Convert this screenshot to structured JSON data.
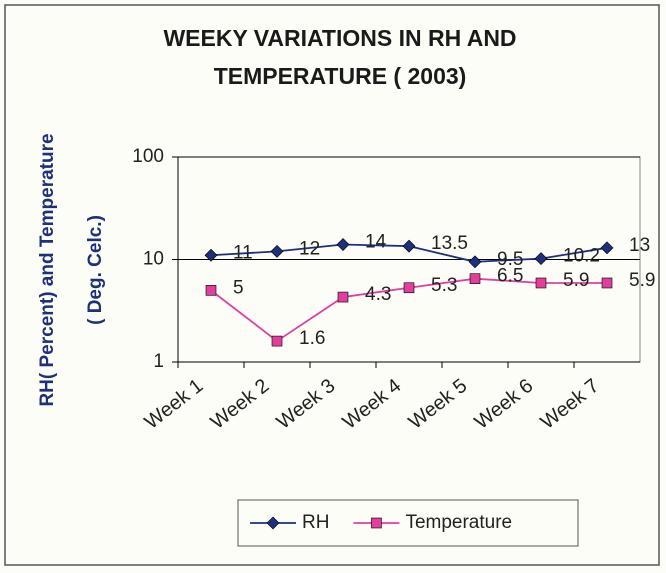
{
  "chart_data": {
    "type": "line",
    "title": [
      "WEEKY VARIATIONS IN RH AND",
      "TEMPERATURE ( 2003)"
    ],
    "ylabel": [
      "RH( Percent) and Temperature",
      "( Deg. Celc.)"
    ],
    "categories": [
      "Week 1",
      "Week 2",
      "Week 3",
      "Week 4",
      "Week 5",
      "Week 6",
      "Week 7"
    ],
    "series": [
      {
        "name": "RH",
        "color": "#1f2f7a",
        "marker": "diamond",
        "values": [
          11,
          12,
          14,
          13.5,
          9.5,
          10.2,
          13
        ]
      },
      {
        "name": "Temperature",
        "color": "#e0409c",
        "marker": "square",
        "values": [
          5,
          1.6,
          4.3,
          5.3,
          6.5,
          5.9,
          5.9
        ]
      }
    ],
    "ylim": [
      1,
      100
    ],
    "yticks": [
      1,
      10,
      100
    ],
    "log_y": true,
    "grid": true,
    "legend": "bottom"
  }
}
